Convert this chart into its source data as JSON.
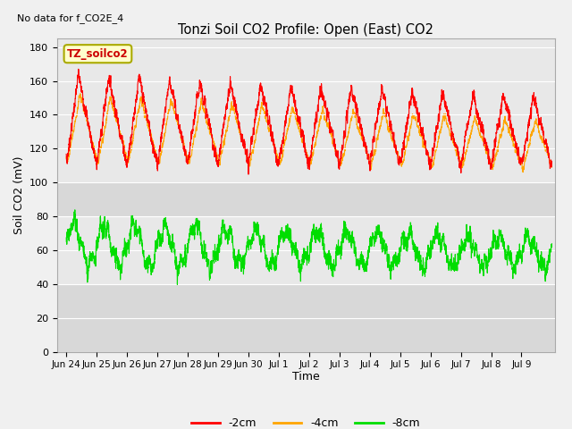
{
  "title": "Tonzi Soil CO2 Profile: Open (East) CO2",
  "top_left_note": "No data for f_CO2E_4",
  "ylabel": "Soil CO2 (mV)",
  "xlabel": "Time",
  "legend_label": "TZ_soilco2",
  "series_labels": [
    "-2cm",
    "-4cm",
    "-8cm"
  ],
  "series_colors": [
    "#ff0000",
    "#ffa500",
    "#00dd00"
  ],
  "ylim": [
    0,
    185
  ],
  "yticks": [
    0,
    20,
    40,
    60,
    80,
    100,
    120,
    140,
    160,
    180
  ],
  "xtick_labels": [
    "Jun 24",
    "Jun 25",
    "Jun 26",
    "Jun 27",
    "Jun 28",
    "Jun 29",
    "Jun 30",
    "Jul 1",
    "Jul 2",
    "Jul 3",
    "Jul 4",
    "Jul 5",
    "Jul 6",
    "Jul 7",
    "Jul 8",
    "Jul 9"
  ],
  "n_points": 3840,
  "fig_width": 6.4,
  "fig_height": 4.8,
  "dpi": 100
}
